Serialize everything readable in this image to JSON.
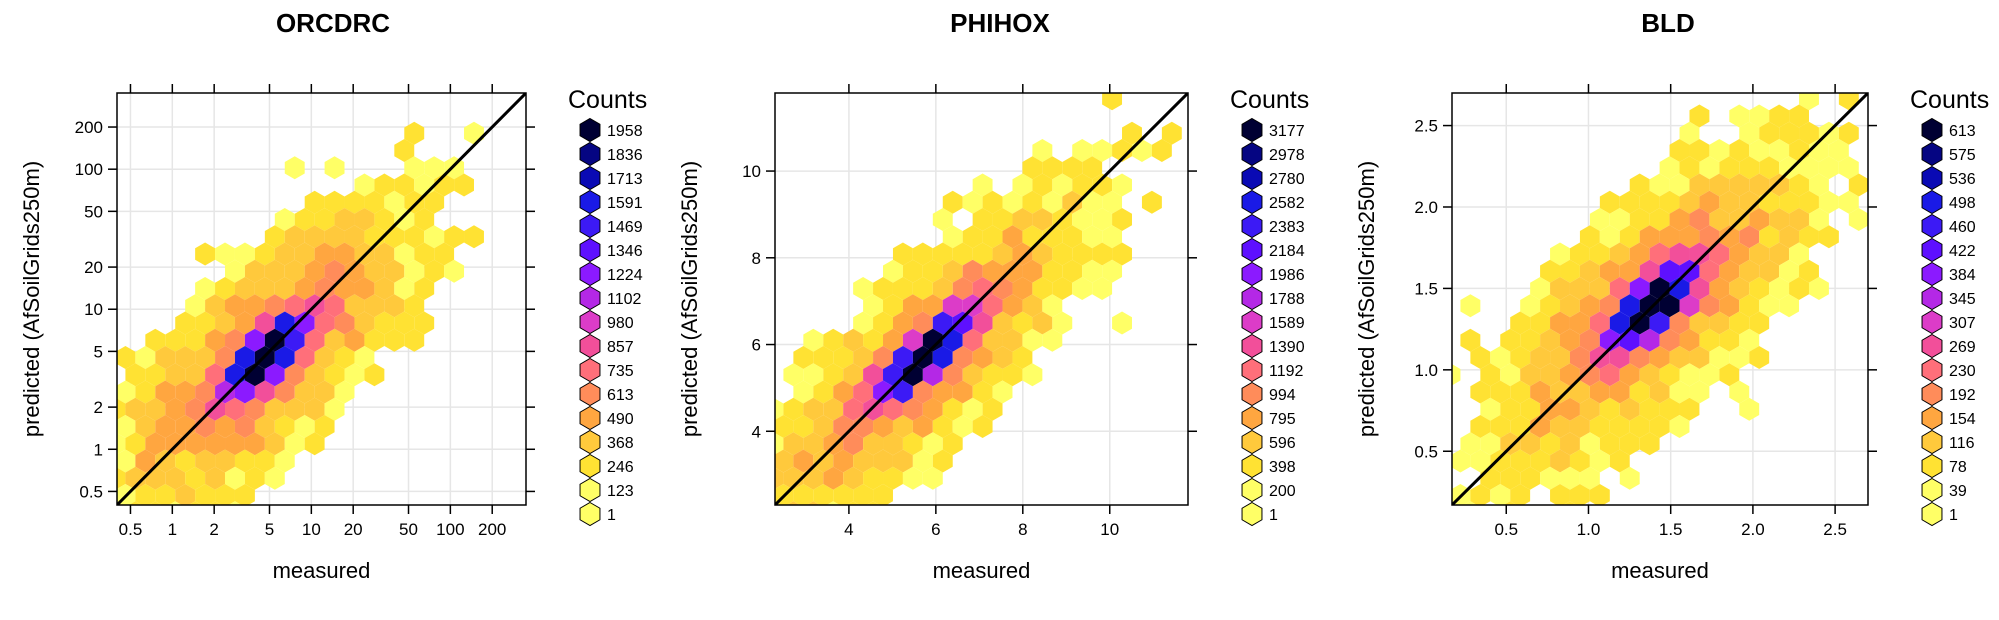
{
  "colors": {
    "scale": [
      "#FFFF66",
      "#FFE233",
      "#FFC93C",
      "#FFA640",
      "#FF8C5A",
      "#FF6F7A",
      "#F24F9A",
      "#DC3CC8",
      "#B428E6",
      "#8B1AFF",
      "#5E10FF",
      "#3C1AF5",
      "#1A1AE6",
      "#0A0AB4",
      "#050582",
      "#000033"
    ],
    "diagonal": "#000000",
    "grid": "#e6e6e6"
  },
  "chart_data": [
    {
      "type": "heatmap",
      "title": "ORCDRC",
      "xlabel": "measured",
      "ylabel": "predicted (AfSoilGrids250m)",
      "scale": "log10",
      "xlim": [
        0.4,
        350
      ],
      "ylim": [
        0.4,
        350
      ],
      "x_ticks": [
        0.5,
        1,
        2,
        5,
        10,
        20,
        50,
        100,
        200
      ],
      "x_tick_labels": [
        "0.5",
        "1",
        "2",
        "5",
        "10",
        "20",
        "50",
        "100",
        "200"
      ],
      "y_ticks": [
        0.5,
        1,
        2,
        5,
        10,
        20,
        50,
        100,
        200
      ],
      "y_tick_labels": [
        "0.5",
        "1",
        "2",
        "5",
        "10",
        "20",
        "50",
        "100",
        "200"
      ],
      "identity_line": true,
      "legend_title": "Counts",
      "legend_values": [
        "1958",
        "1836",
        "1713",
        "1591",
        "1469",
        "1346",
        "1224",
        "1102",
        "980",
        "857",
        "735",
        "613",
        "490",
        "368",
        "246",
        "123",
        "1"
      ]
    },
    {
      "type": "heatmap",
      "title": "PHIHOX",
      "xlabel": "measured",
      "ylabel": "predicted (AfSoilGrids250m)",
      "scale": "linear",
      "xlim": [
        2.3,
        11.8
      ],
      "ylim": [
        2.3,
        11.8
      ],
      "x_ticks": [
        4,
        6,
        8,
        10
      ],
      "x_tick_labels": [
        "4",
        "6",
        "8",
        "10"
      ],
      "y_ticks": [
        4,
        6,
        8,
        10
      ],
      "y_tick_labels": [
        "4",
        "6",
        "8",
        "10"
      ],
      "identity_line": true,
      "legend_title": "Counts",
      "legend_values": [
        "3177",
        "2978",
        "2780",
        "2582",
        "2383",
        "2184",
        "1986",
        "1788",
        "1589",
        "1390",
        "1192",
        "994",
        "795",
        "596",
        "398",
        "200",
        "1"
      ]
    },
    {
      "type": "heatmap",
      "title": "BLD",
      "xlabel": "measured",
      "ylabel": "predicted (AfSoilGrids250m)",
      "scale": "linear",
      "xlim": [
        0.17,
        2.7
      ],
      "ylim": [
        0.17,
        2.7
      ],
      "x_ticks": [
        0.5,
        1.0,
        1.5,
        2.0,
        2.5
      ],
      "x_tick_labels": [
        "0.5",
        "1.0",
        "1.5",
        "2.0",
        "2.5"
      ],
      "y_ticks": [
        0.5,
        1.0,
        1.5,
        2.0,
        2.5
      ],
      "y_tick_labels": [
        "0.5",
        "1.0",
        "1.5",
        "2.0",
        "2.5"
      ],
      "identity_line": true,
      "legend_title": "Counts",
      "legend_values": [
        "613",
        "575",
        "536",
        "498",
        "460",
        "422",
        "384",
        "345",
        "307",
        "269",
        "230",
        "192",
        "154",
        "116",
        "78",
        "39",
        "1"
      ]
    }
  ]
}
